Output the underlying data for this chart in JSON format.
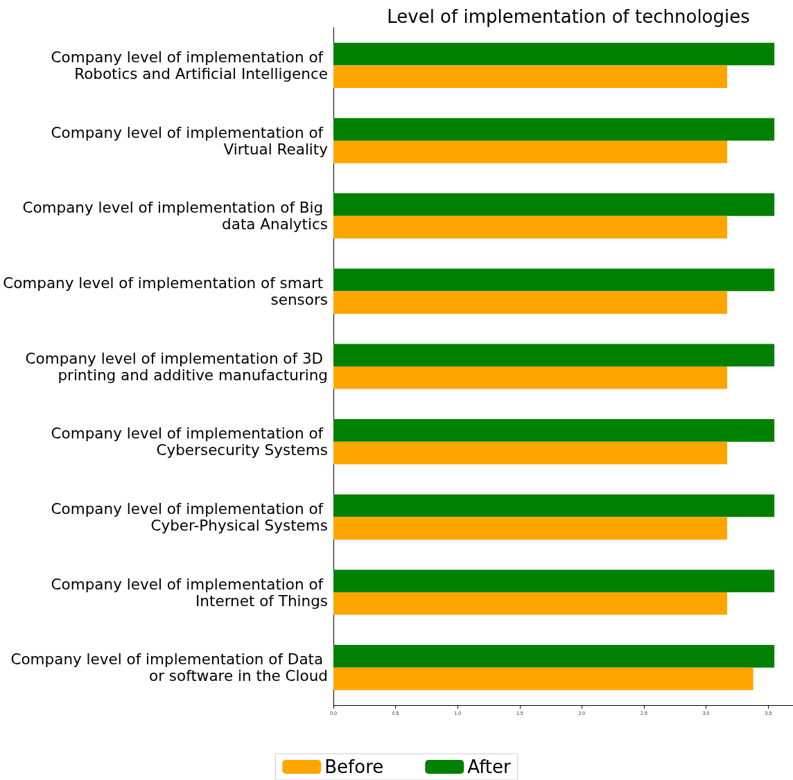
{
  "chart_data": {
    "type": "bar",
    "orientation": "horizontal",
    "title": "Level of implementation of technologies",
    "categories": [
      "Company level of implementation of Robotics and Artificial Intelligence",
      "Company level of implementation of Virtual Reality",
      "Company level of implementation of Big data Analytics",
      "Company level of implementation of smart sensors",
      "Company level of implementation of 3D printing and additive manufacturing",
      "Company level of implementation of Cybersecurity Systems",
      "Company level of implementation of Cyber-Physical Systems",
      "Company level of implementation of Internet of Things",
      "Company level of implementation of Data or software in the Cloud"
    ],
    "series": [
      {
        "name": "Before",
        "color": "#ffa500",
        "values": [
          3.17,
          3.17,
          3.17,
          3.17,
          3.17,
          3.17,
          3.17,
          3.17,
          3.38
        ]
      },
      {
        "name": "After",
        "color": "#008000",
        "values": [
          3.55,
          3.55,
          3.55,
          3.55,
          3.55,
          3.55,
          3.55,
          3.55,
          3.55
        ]
      }
    ],
    "xlim": [
      0,
      3.7
    ],
    "xticks": [
      {
        "value": 0,
        "label": "0.0"
      },
      0.5,
      {
        "value": 1,
        "label": "1.0"
      },
      1.5,
      {
        "value": 2,
        "label": "2.0"
      },
      2.5,
      {
        "value": 3,
        "label": "3.0"
      },
      3.5
    ],
    "legend": "bottom",
    "grid": false
  }
}
